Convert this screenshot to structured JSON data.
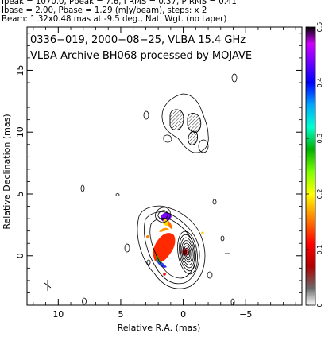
{
  "header": {
    "line1": "Ipeak = 1070.0, Ppeak = 7.6, I RMS = 0.37, P RMS = 0.41",
    "line2": "Ibase = 2.00, Pbase = 1.29 (mJy/beam), steps: x 2",
    "line3": "Beam: 1.32x0.48 mas at -9.5 deg., Nat. Wgt. (no taper)"
  },
  "panel": {
    "line1": "0336−019, 2000−08−25, VLBA 15.4 GHz",
    "line2": "VLBA Archive BH068 processed by MOJAVE"
  },
  "chart_data": {
    "type": "contour",
    "xlabel": "Relative R.A. (mas)",
    "ylabel": "Relative Declination (mas)",
    "xlim": [
      12.5,
      -9.5
    ],
    "ylim": [
      -4,
      18.5
    ],
    "xticks": [
      10,
      5,
      0,
      -5
    ],
    "xtick_labels": [
      "10",
      "5",
      "0",
      "−5"
    ],
    "yticks": [
      0,
      5,
      10,
      15
    ],
    "ytick_labels": [
      "0",
      "5",
      "10",
      "15"
    ],
    "grid": false,
    "peak_position": [
      0,
      0
    ],
    "colorbar": {
      "min": 0,
      "max": 0.5,
      "ticks": [
        0,
        0.1,
        0.2,
        0.3,
        0.4,
        0.5
      ],
      "tick_labels": [
        "0",
        "0.1",
        "0.2",
        "0.3",
        "0.4",
        "0.5"
      ],
      "placement": "right",
      "colors": [
        "#ffffff",
        "#606060",
        "#c00000",
        "#ff0000",
        "#ff8000",
        "#ffff00",
        "#80ff00",
        "#00c000",
        "#00ffc0",
        "#00a0ff",
        "#0000ff",
        "#8000ff",
        "#c000ff",
        "#000000"
      ]
    }
  }
}
